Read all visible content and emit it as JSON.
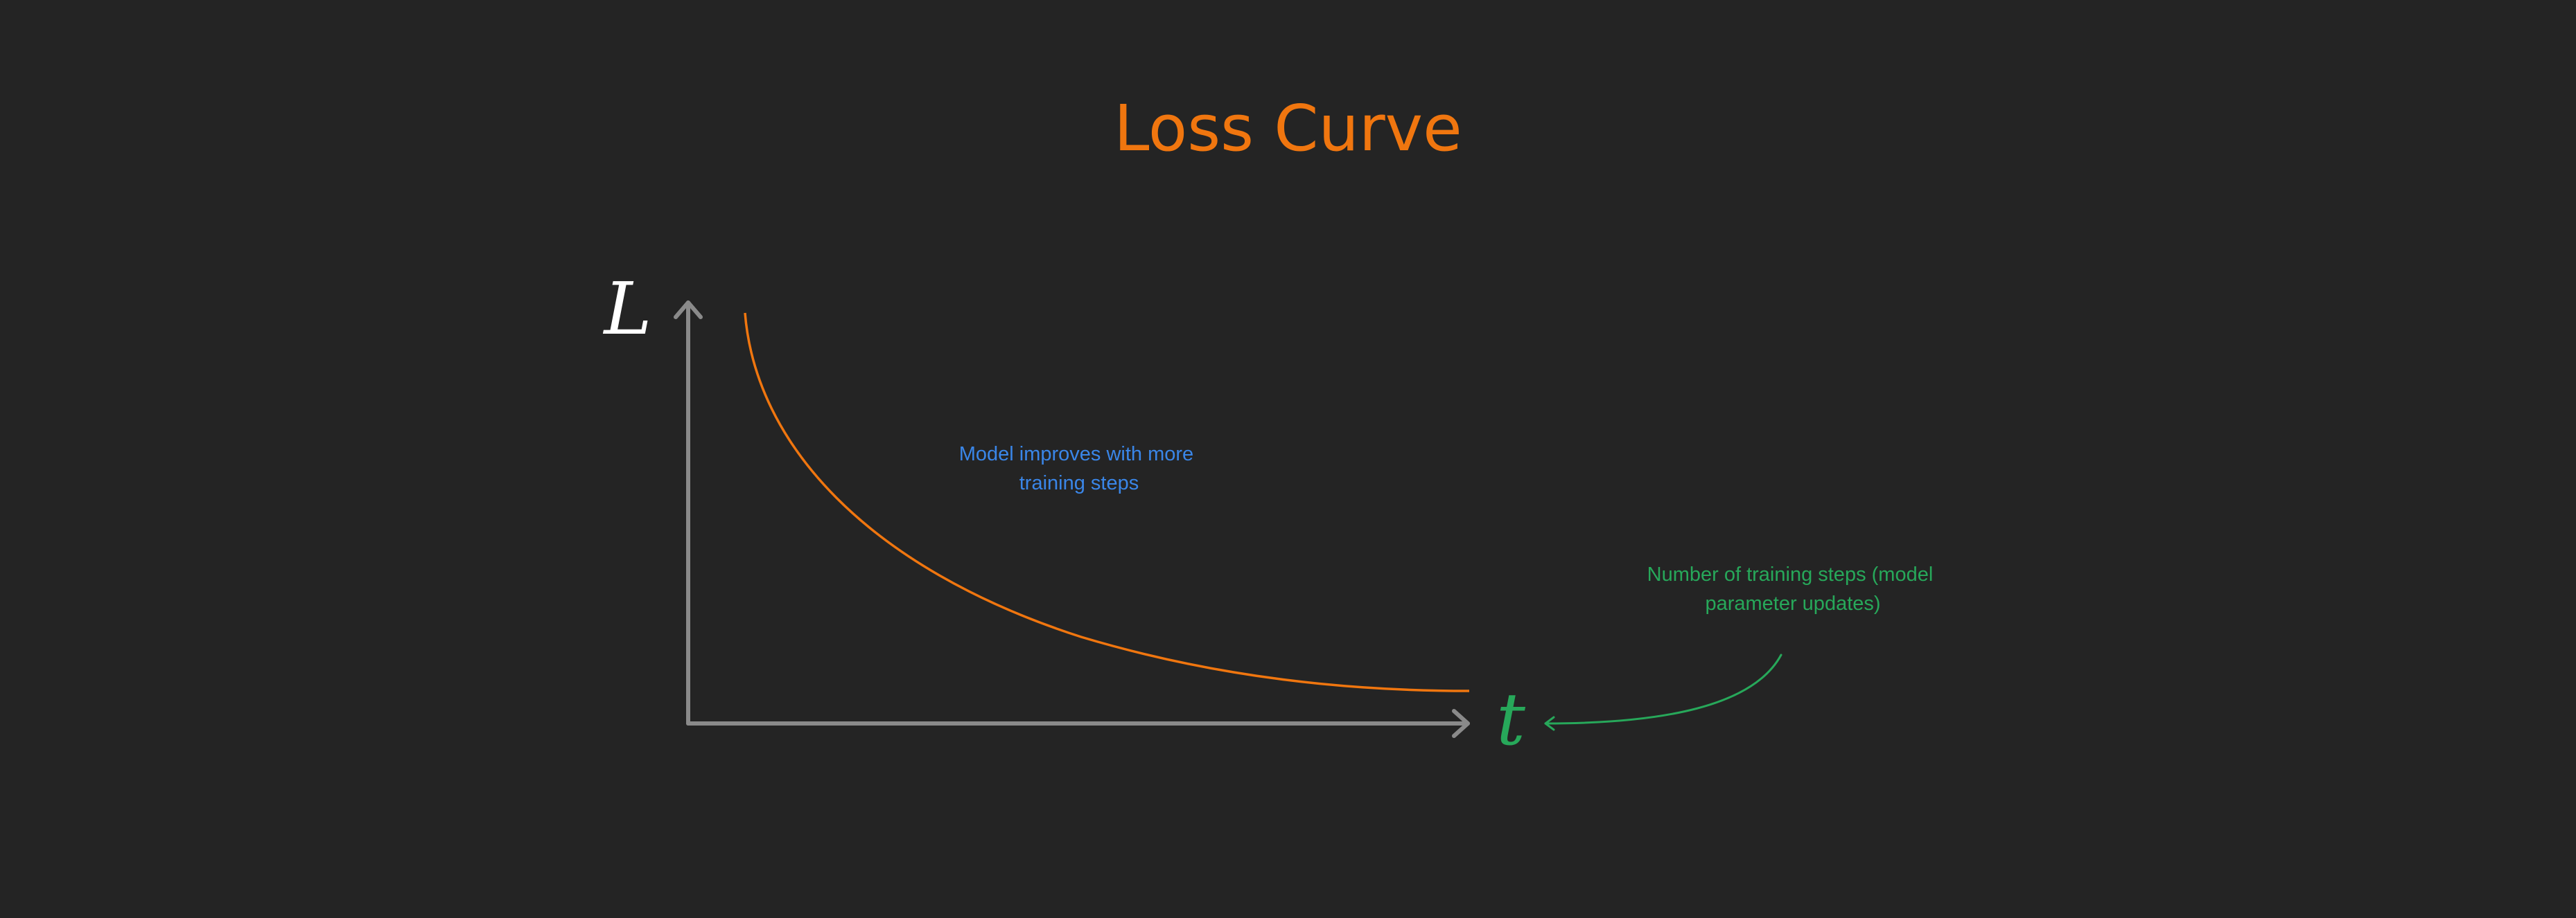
{
  "title": "Loss Curve",
  "y_axis_symbol": "L",
  "x_axis_symbol": "t",
  "curve_note": [
    "Model improves with more",
    "training steps"
  ],
  "x_axis_note": [
    "Number of training steps (model",
    "parameter updates)"
  ],
  "colors": {
    "background": "#242424",
    "title": "#f0760f",
    "curve": "#f0760f",
    "axis": "#8a8a8a",
    "y_symbol": "#ffffff",
    "x_symbol": "#27a85a",
    "curve_note": "#3a86e8",
    "x_axis_note": "#27a85a"
  }
}
